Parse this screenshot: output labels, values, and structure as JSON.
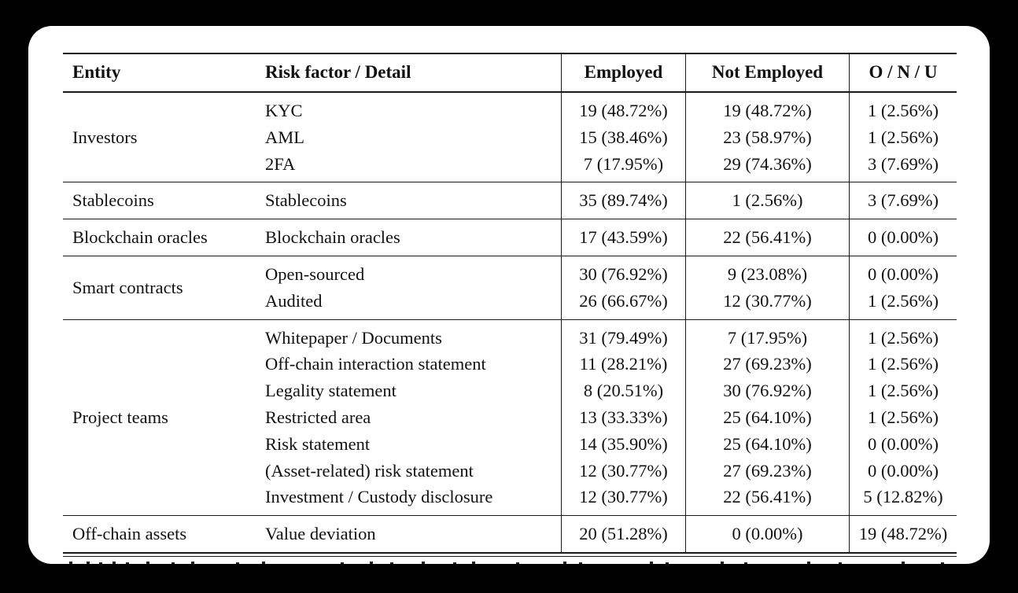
{
  "table": {
    "columns": [
      "Entity",
      "Risk factor / Detail",
      "Employed",
      "Not Employed",
      "O / N / U"
    ],
    "groups": [
      {
        "entity": "Investors",
        "rows": [
          {
            "detail": "KYC",
            "employed": "19 (48.72%)",
            "not_employed": "19 (48.72%)",
            "onu": "1 (2.56%)"
          },
          {
            "detail": "AML",
            "employed": "15 (38.46%)",
            "not_employed": "23 (58.97%)",
            "onu": "1 (2.56%)"
          },
          {
            "detail": "2FA",
            "employed": "7 (17.95%)",
            "not_employed": "29 (74.36%)",
            "onu": "3 (7.69%)"
          }
        ]
      },
      {
        "entity": "Stablecoins",
        "rows": [
          {
            "detail": "Stablecoins",
            "employed": "35 (89.74%)",
            "not_employed": "1 (2.56%)",
            "onu": "3 (7.69%)"
          }
        ]
      },
      {
        "entity": "Blockchain oracles",
        "rows": [
          {
            "detail": "Blockchain oracles",
            "employed": "17 (43.59%)",
            "not_employed": "22 (56.41%)",
            "onu": "0 (0.00%)"
          }
        ]
      },
      {
        "entity": "Smart contracts",
        "rows": [
          {
            "detail": "Open-sourced",
            "employed": "30 (76.92%)",
            "not_employed": "9 (23.08%)",
            "onu": "0 (0.00%)"
          },
          {
            "detail": "Audited",
            "employed": "26 (66.67%)",
            "not_employed": "12 (30.77%)",
            "onu": "1 (2.56%)"
          }
        ]
      },
      {
        "entity": "Project teams",
        "rows": [
          {
            "detail": "Whitepaper / Documents",
            "employed": "31 (79.49%)",
            "not_employed": "7 (17.95%)",
            "onu": "1 (2.56%)"
          },
          {
            "detail": "Off-chain interaction statement",
            "employed": "11 (28.21%)",
            "not_employed": "27 (69.23%)",
            "onu": "1 (2.56%)"
          },
          {
            "detail": "Legality statement",
            "employed": "8 (20.51%)",
            "not_employed": "30 (76.92%)",
            "onu": "1 (2.56%)"
          },
          {
            "detail": "Restricted area",
            "employed": "13 (33.33%)",
            "not_employed": "25 (64.10%)",
            "onu": "1 (2.56%)"
          },
          {
            "detail": "Risk statement",
            "employed": "14 (35.90%)",
            "not_employed": "25 (64.10%)",
            "onu": "0 (0.00%)"
          },
          {
            "detail": "(Asset-related) risk statement",
            "employed": "12 (30.77%)",
            "not_employed": "27 (69.23%)",
            "onu": "0 (0.00%)"
          },
          {
            "detail": "Investment / Custody disclosure",
            "employed": "12 (30.77%)",
            "not_employed": "22 (56.41%)",
            "onu": "5 (12.82%)"
          }
        ]
      },
      {
        "entity": "Off-chain assets",
        "rows": [
          {
            "detail": "Value deviation",
            "employed": "20 (51.28%)",
            "not_employed": "0 (0.00%)",
            "onu": "19 (48.72%)"
          }
        ]
      }
    ]
  }
}
